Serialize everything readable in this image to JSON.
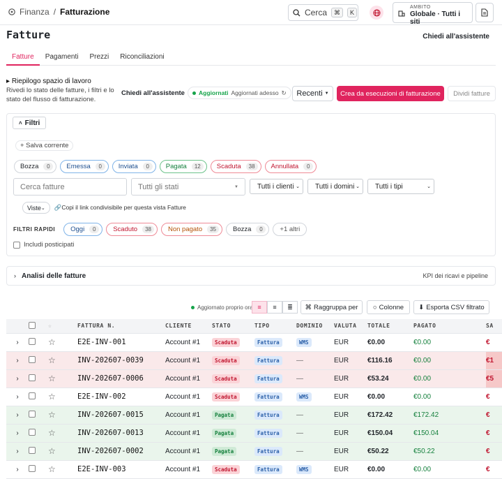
{
  "breadcrumb": {
    "root": "Finanza",
    "separator": "/",
    "current": "Fatturazione"
  },
  "search": {
    "label": "Cerca",
    "key1": "⌘",
    "key2": "K"
  },
  "scope": {
    "label": "AMBITO",
    "value": "Globale · Tutti i siti"
  },
  "page": {
    "title": "Fatture",
    "ask": "Chiedi all'assistente"
  },
  "tabs": [
    "Fatture",
    "Pagamenti",
    "Prezzi",
    "Riconciliazioni"
  ],
  "summary": {
    "title": "Riepilogo spazio di lavoro",
    "text": "Rivedi lo stato delle fatture, i filtri e lo stato del flusso di fatturazione."
  },
  "toolbar": {
    "ask": "Chiedi all'assistente",
    "sync_status": "Aggiornati",
    "sync_text": "Aggiornati adesso",
    "recent": "Recenti",
    "create": "Crea da esecuzioni di fatturazione",
    "split": "Dividi fatture"
  },
  "filters": {
    "toggle": "Filtri",
    "save": "+ Salva corrente",
    "status_chips": [
      {
        "label": "Bozza",
        "count": "0",
        "color": "#d1d5db",
        "text": "#1f2328"
      },
      {
        "label": "Emessa",
        "count": "0",
        "color": "#7fb3e8",
        "text": "#1e4f8f"
      },
      {
        "label": "Inviata",
        "count": "0",
        "color": "#7fb3e8",
        "text": "#1e4f8f"
      },
      {
        "label": "Pagata",
        "count": "12",
        "color": "#6cc28a",
        "text": "#15803d"
      },
      {
        "label": "Scaduta",
        "count": "38",
        "color": "#ef8a96",
        "text": "#c0152f"
      },
      {
        "label": "Annullata",
        "count": "0",
        "color": "#ef8a96",
        "text": "#c0152f"
      }
    ],
    "search_placeholder": "Cerca fatture",
    "status_select": "Tutti gli stati",
    "client_select": "Tutti i clienti",
    "domain_select": "Tutti i domini",
    "type_select": "Tutti i tipi",
    "views": "Viste",
    "copy_link": "Copi il link condivisibile per questa vista Fatture",
    "quick_label": "FILTRI RAPIDI",
    "quick": [
      {
        "label": "Oggi",
        "count": "0",
        "color": "#7fb3e8",
        "text": "#1e4f8f"
      },
      {
        "label": "Scaduto",
        "count": "38",
        "color": "#ef8a96",
        "text": "#c0152f"
      },
      {
        "label": "Non pagato",
        "count": "35",
        "color": "#ef8a96",
        "text": "#b45309"
      },
      {
        "label": "Bozza",
        "count": "0",
        "color": "#d1d5db",
        "text": "#1f2328"
      }
    ],
    "more": "+1 altri",
    "include_posted": "Includi posticipati"
  },
  "analytics": {
    "title": "Analisi delle fatture",
    "right": "KPI dei ricavi e pipeline"
  },
  "table_tools": {
    "updated": "Aggiornato proprio ora",
    "group": "Raggruppa per",
    "columns": "Colonne",
    "export": "Esporta CSV filtrato"
  },
  "table": {
    "headers": [
      "",
      "",
      "",
      "FATTURA N.",
      "CLIENTE",
      "STATO",
      "TIPO",
      "DOMINIO",
      "VALUTA",
      "TOTALE",
      "PAGATO",
      "SA"
    ],
    "rows": [
      {
        "tone": "none",
        "id": "E2E-INV-001",
        "client": "Account #1",
        "status": "Scaduta",
        "type": "Fattura",
        "domain": "WMS",
        "currency": "EUR",
        "total": "€0.00",
        "paid": "€0.00",
        "sa": "€"
      },
      {
        "tone": "red",
        "id": "INV-202607-0039",
        "client": "Account #1",
        "status": "Scaduta",
        "type": "Fattura",
        "domain": "—",
        "currency": "EUR",
        "total": "€116.16",
        "paid": "€0.00",
        "sa": "€1"
      },
      {
        "tone": "red",
        "id": "INV-202607-0006",
        "client": "Account #1",
        "status": "Scaduta",
        "type": "Fattura",
        "domain": "—",
        "currency": "EUR",
        "total": "€53.24",
        "paid": "€0.00",
        "sa": "€5"
      },
      {
        "tone": "none",
        "id": "E2E-INV-002",
        "client": "Account #1",
        "status": "Scaduta",
        "type": "Fattura",
        "domain": "WMS",
        "currency": "EUR",
        "total": "€0.00",
        "paid": "€0.00",
        "sa": "€"
      },
      {
        "tone": "green",
        "id": "INV-202607-0015",
        "client": "Account #1",
        "status": "Pagata",
        "type": "Fattura",
        "domain": "—",
        "currency": "EUR",
        "total": "€172.42",
        "paid": "€172.42",
        "sa": "€"
      },
      {
        "tone": "green",
        "id": "INV-202607-0013",
        "client": "Account #1",
        "status": "Pagata",
        "type": "Fattura",
        "domain": "—",
        "currency": "EUR",
        "total": "€150.04",
        "paid": "€150.04",
        "sa": "€"
      },
      {
        "tone": "green",
        "id": "INV-202607-0002",
        "client": "Account #1",
        "status": "Pagata",
        "type": "Fattura",
        "domain": "—",
        "currency": "EUR",
        "total": "€50.22",
        "paid": "€50.22",
        "sa": "€"
      },
      {
        "tone": "none",
        "id": "E2E-INV-003",
        "client": "Account #1",
        "status": "Scaduta",
        "type": "Fattura",
        "domain": "WMS",
        "currency": "EUR",
        "total": "€0.00",
        "paid": "€0.00",
        "sa": "€"
      }
    ]
  }
}
